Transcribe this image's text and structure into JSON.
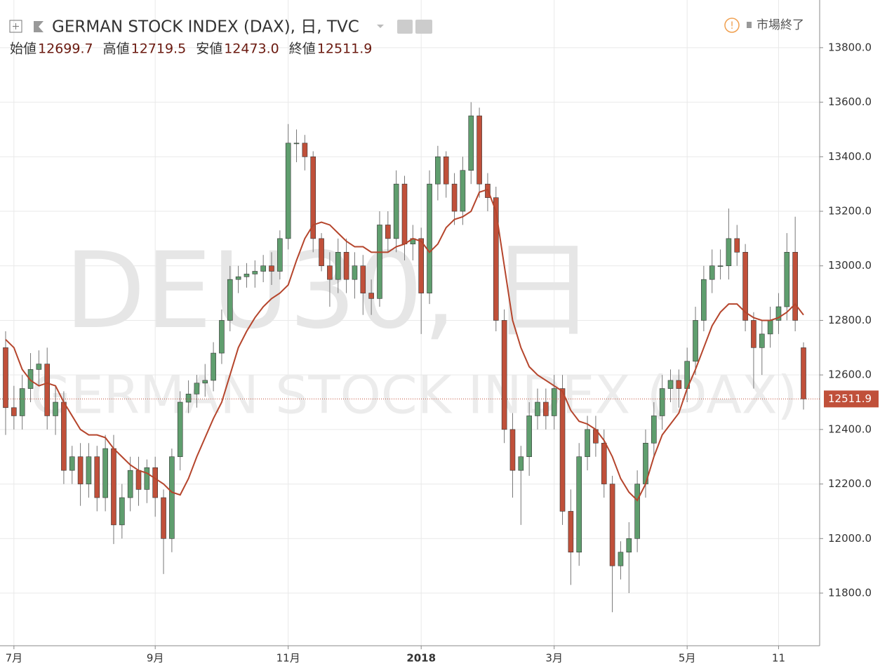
{
  "chart_data": {
    "type": "candlestick",
    "title": "GERMAN STOCK INDEX (DAX), 日, TVC",
    "status": "市場終了",
    "watermark": "DEU30, 日",
    "watermark_sub": "GERMAN STOCK INDEX (DAX)",
    "header_stats": [
      {
        "name": "始値",
        "text": "12699.7"
      },
      {
        "name": "高値",
        "text": "12719.5"
      },
      {
        "name": "安値",
        "text": "12473.0"
      },
      {
        "name": "終値",
        "text": "12511.9"
      }
    ],
    "categories": [
      null,
      "7月",
      null,
      null,
      null,
      null,
      null,
      null,
      null,
      null,
      null,
      null,
      null,
      null,
      null,
      null,
      null,
      null,
      "9月",
      null,
      null,
      null,
      null,
      null,
      null,
      null,
      null,
      null,
      null,
      null,
      null,
      null,
      null,
      null,
      "11月",
      null,
      null,
      null,
      null,
      null,
      null,
      null,
      null,
      null,
      null,
      null,
      null,
      null,
      null,
      null,
      "2018",
      null,
      null,
      null,
      null,
      null,
      null,
      null,
      null,
      null,
      null,
      null,
      null,
      null,
      null,
      null,
      "3月",
      null,
      null,
      null,
      null,
      null,
      null,
      null,
      null,
      null,
      null,
      null,
      null,
      null,
      null,
      null,
      "5月",
      null,
      null,
      null,
      null,
      null,
      null,
      null,
      null,
      null,
      null,
      "11",
      null,
      null,
      null
    ],
    "open": [
      12700,
      12480,
      12450,
      12550,
      12620,
      12640,
      12450,
      12500,
      12250,
      12300,
      12200,
      12300,
      12150,
      12330,
      12050,
      12150,
      12250,
      12180,
      12260,
      12150,
      12000,
      12300,
      12500,
      12530,
      12570,
      12580,
      12680,
      12800,
      12950,
      12960,
      12970,
      12980,
      13000,
      12980,
      13100,
      13450,
      13450,
      13400,
      13100,
      13000,
      12950,
      13050,
      12950,
      13000,
      12900,
      12880,
      13150,
      13100,
      13300,
      13080,
      13100,
      12900,
      13300,
      13400,
      13300,
      13200,
      13350,
      13550,
      13300,
      13250,
      12800,
      12400,
      12250,
      12300,
      12450,
      12500,
      12450,
      12550,
      12100,
      11950,
      12300,
      12400,
      12350,
      12200,
      11900,
      11950,
      12000,
      12200,
      12350,
      12450,
      12550,
      12580,
      12550,
      12650,
      12800,
      12950,
      13000,
      13000,
      13100,
      13050,
      12800,
      12700,
      12750,
      12800,
      12850,
      13050,
      12699.7
    ],
    "high": [
      12760,
      12560,
      12600,
      12680,
      12690,
      12700,
      12560,
      12540,
      12340,
      12350,
      12350,
      12340,
      12380,
      12380,
      12200,
      12300,
      12300,
      12290,
      12300,
      12180,
      12330,
      12540,
      12580,
      12600,
      12640,
      12720,
      12840,
      13000,
      13000,
      13010,
      13020,
      13040,
      13050,
      13130,
      13520,
      13500,
      13480,
      13420,
      13120,
      13050,
      13100,
      13100,
      13050,
      13040,
      12950,
      13200,
      13200,
      13350,
      13330,
      13150,
      13140,
      13350,
      13440,
      13420,
      13340,
      13400,
      13600,
      13580,
      13340,
      13290,
      12840,
      12460,
      12340,
      12500,
      12550,
      12550,
      12600,
      12600,
      12180,
      12350,
      12450,
      12450,
      12400,
      12230,
      11990,
      12060,
      12250,
      12400,
      12500,
      12600,
      12620,
      12620,
      12700,
      12850,
      13000,
      13060,
      13060,
      13210,
      13150,
      13080,
      12830,
      12800,
      12850,
      12900,
      13120,
      13180,
      12719.5
    ],
    "low": [
      12380,
      12400,
      12400,
      12500,
      12560,
      12400,
      12380,
      12200,
      12200,
      12120,
      12150,
      12100,
      12100,
      11980,
      12000,
      12100,
      12120,
      12130,
      12080,
      11870,
      11950,
      12250,
      12460,
      12480,
      12520,
      12540,
      12640,
      12760,
      12900,
      12920,
      12920,
      12940,
      12930,
      12950,
      13060,
      13380,
      13350,
      13050,
      12980,
      12850,
      12900,
      12900,
      12880,
      12820,
      12820,
      12850,
      13050,
      13050,
      13020,
      13020,
      12750,
      12860,
      13240,
      13250,
      13150,
      13150,
      13300,
      13250,
      13200,
      12760,
      12350,
      12150,
      12050,
      12230,
      12400,
      12400,
      12400,
      12050,
      11830,
      11900,
      12250,
      12300,
      12150,
      11730,
      11850,
      11800,
      11950,
      12150,
      12300,
      12400,
      12500,
      12480,
      12500,
      12600,
      12760,
      12900,
      12950,
      12950,
      13000,
      12760,
      12550,
      12600,
      12700,
      12750,
      12800,
      12760,
      12473
    ],
    "close": [
      12480,
      12450,
      12550,
      12620,
      12640,
      12450,
      12500,
      12250,
      12300,
      12200,
      12300,
      12150,
      12330,
      12050,
      12150,
      12250,
      12180,
      12260,
      12150,
      12000,
      12300,
      12500,
      12530,
      12570,
      12580,
      12680,
      12800,
      12950,
      12960,
      12970,
      12980,
      13000,
      12980,
      13100,
      13450,
      13450,
      13400,
      13100,
      13000,
      12950,
      13050,
      12950,
      13000,
      12900,
      12880,
      13150,
      13100,
      13300,
      13080,
      13100,
      12900,
      13300,
      13400,
      13300,
      13200,
      13350,
      13550,
      13300,
      13250,
      12800,
      12400,
      12250,
      12300,
      12450,
      12500,
      12450,
      12550,
      12100,
      11950,
      12300,
      12400,
      12350,
      12200,
      11900,
      11950,
      12000,
      12200,
      12350,
      12450,
      12550,
      12580,
      12550,
      12650,
      12800,
      12950,
      13000,
      13000,
      13100,
      13050,
      12800,
      12700,
      12750,
      12800,
      12850,
      13050,
      12800,
      12511.9
    ],
    "ma": [
      12730,
      12700,
      12620,
      12580,
      12560,
      12570,
      12560,
      12500,
      12450,
      12400,
      12380,
      12380,
      12370,
      12330,
      12300,
      12270,
      12250,
      12240,
      12220,
      12200,
      12170,
      12160,
      12220,
      12300,
      12370,
      12440,
      12500,
      12600,
      12700,
      12760,
      12810,
      12850,
      12880,
      12900,
      12930,
      13020,
      13100,
      13150,
      13160,
      13150,
      13120,
      13090,
      13070,
      13070,
      13050,
      13050,
      13050,
      13070,
      13080,
      13100,
      13090,
      13050,
      13080,
      13140,
      13170,
      13180,
      13200,
      13270,
      13280,
      13200,
      13000,
      12800,
      12700,
      12630,
      12600,
      12580,
      12560,
      12540,
      12470,
      12430,
      12420,
      12400,
      12360,
      12300,
      12220,
      12170,
      12140,
      12200,
      12300,
      12380,
      12420,
      12460,
      12550,
      12620,
      12700,
      12780,
      12830,
      12860,
      12860,
      12830,
      12810,
      12800,
      12800,
      12810,
      12830,
      12860,
      12820
    ],
    "up_color": "#5f9e6e",
    "down_color": "#c0503a",
    "ma_color": "#b5452c",
    "ylim": [
      11607,
      13949
    ],
    "yticks": [
      {
        "value": 11800,
        "label": "11800.0"
      },
      {
        "value": 12000,
        "label": "12000.0"
      },
      {
        "value": 12200,
        "label": "12200.0"
      },
      {
        "value": 12400,
        "label": "12400.0"
      },
      {
        "value": 12600,
        "label": "12600.0"
      },
      {
        "value": 12800,
        "label": "12800.0"
      },
      {
        "value": 13000,
        "label": "13000.0"
      },
      {
        "value": 13200,
        "label": "13200.0"
      },
      {
        "value": 13400,
        "label": "13400.0"
      },
      {
        "value": 13600,
        "label": "13600.0"
      },
      {
        "value": 13800,
        "label": "13800.0"
      }
    ],
    "grid": true
  }
}
